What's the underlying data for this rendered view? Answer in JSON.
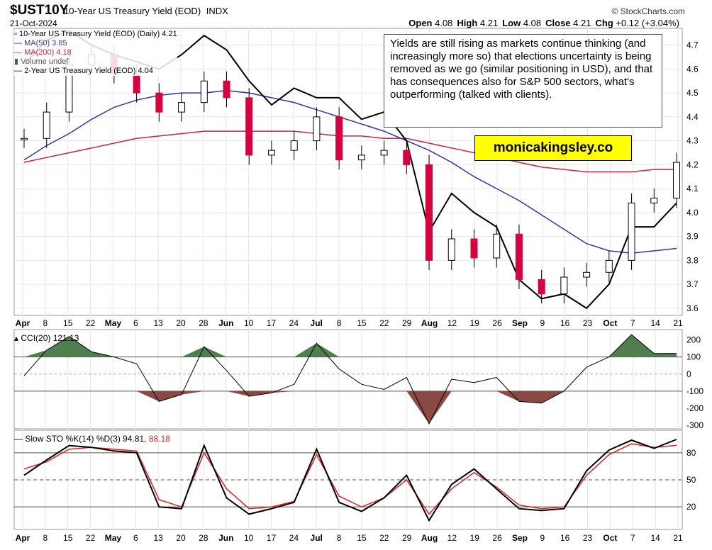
{
  "header": {
    "ticker": "$UST10Y",
    "name": "10-Year US Treasury Yield (EOD)",
    "exchange": "INDX",
    "date": "21-Oct-2024",
    "brand": "© StockCharts.com",
    "ohlc": [
      {
        "label": "Open",
        "value": "4.08"
      },
      {
        "label": "High",
        "value": "4.21"
      },
      {
        "label": "Low",
        "value": "4.08"
      },
      {
        "label": "Close",
        "value": "4.21"
      },
      {
        "label": "Chg",
        "value": "+0.12 (+3.04%)"
      }
    ]
  },
  "legend": {
    "price": "10-Year US Treasury Yield (EOD) (Daily) 4.21",
    "ma50": "MA(50) 3.85",
    "ma200": "MA(200) 4.18",
    "volume": "Volume undef",
    "two_year": "2-Year US Treasury Yield (EOD) 4.04"
  },
  "annotation": "Yields are still rising as markets continue thinking (and increasingly more so) that elections uncertainty is being removed as we go (similar positioning in USD), and that has consequences also for S&P 500 sectors, what's outperforming (talked with clients).",
  "watermark": "monicakingsley.co",
  "cci_legend": "CCI(20) 121.13",
  "sto_legend": {
    "label": "Slow STO %K(14) %D(3) 94.81,",
    "d_value": "88.18"
  },
  "colors": {
    "up": "#ffffff",
    "down": "#d8003f",
    "ma50": "#3333aa",
    "ma200": "#cc2244",
    "two_year": "#000000",
    "cci_pos": "#4f7f4f",
    "cci_neg": "#8a4a44",
    "sto_d": "#e02020"
  },
  "chart_data": [
    {
      "type": "candlestick",
      "title": "$UST10Y 10-Year US Treasury Yield (EOD)",
      "y_axis_ticks": [
        "3.6",
        "3.7",
        "3.8",
        "3.9",
        "4.0",
        "4.1",
        "4.2",
        "4.3",
        "4.4",
        "4.5",
        "4.6",
        "4.7"
      ],
      "ylim": [
        3.57,
        4.77
      ],
      "x_tick_labels": [
        "Apr",
        "8",
        "15",
        "22",
        "May",
        "6",
        "13",
        "20",
        "28",
        "Jun",
        "10",
        "17",
        "24",
        "Jul",
        "8",
        "15",
        "22",
        "29",
        "Aug",
        "12",
        "19",
        "26",
        "Sep",
        "9",
        "16",
        "23",
        "Oct",
        "7",
        "14",
        "21"
      ],
      "dates": [
        "2024-04-01",
        "2024-04-08",
        "2024-04-15",
        "2024-04-22",
        "2024-04-29",
        "2024-05-06",
        "2024-05-13",
        "2024-05-20",
        "2024-05-28",
        "2024-06-03",
        "2024-06-10",
        "2024-06-17",
        "2024-06-24",
        "2024-07-01",
        "2024-07-08",
        "2024-07-15",
        "2024-07-22",
        "2024-07-29",
        "2024-08-05",
        "2024-08-12",
        "2024-08-19",
        "2024-08-26",
        "2024-09-03",
        "2024-09-09",
        "2024-09-16",
        "2024-09-23",
        "2024-09-30",
        "2024-10-07",
        "2024-10-14",
        "2024-10-21"
      ],
      "series": [
        {
          "name": "10-Year US Treasury Yield (EOD)",
          "values": [
            4.31,
            4.42,
            4.62,
            4.66,
            4.58,
            4.5,
            4.42,
            4.46,
            4.55,
            4.48,
            4.24,
            4.26,
            4.3,
            4.4,
            4.22,
            4.24,
            4.26,
            4.2,
            3.8,
            3.89,
            3.81,
            3.91,
            3.72,
            3.66,
            3.73,
            3.75,
            3.8,
            4.04,
            4.06,
            4.21
          ]
        },
        {
          "name": "MA(50)",
          "values": [
            4.22,
            4.28,
            4.33,
            4.39,
            4.44,
            4.47,
            4.49,
            4.5,
            4.5,
            4.51,
            4.5,
            4.48,
            4.46,
            4.43,
            4.4,
            4.37,
            4.34,
            4.3,
            4.26,
            4.21,
            4.15,
            4.1,
            4.05,
            3.99,
            3.93,
            3.87,
            3.84,
            3.83,
            3.84,
            3.85
          ]
        },
        {
          "name": "MA(200)",
          "values": [
            4.21,
            4.23,
            4.25,
            4.27,
            4.29,
            4.31,
            4.32,
            4.33,
            4.34,
            4.34,
            4.34,
            4.34,
            4.34,
            4.33,
            4.32,
            4.32,
            4.31,
            4.31,
            4.29,
            4.27,
            4.25,
            4.23,
            4.21,
            4.19,
            4.18,
            4.17,
            4.17,
            4.17,
            4.18,
            4.18
          ]
        },
        {
          "name": "2-Year US Treasury Yield (EOD)",
          "values": [
            4.62,
            4.72,
            4.76,
            4.7,
            4.66,
            4.63,
            4.6,
            4.66,
            4.74,
            4.68,
            4.55,
            4.45,
            4.52,
            4.48,
            4.48,
            4.39,
            4.42,
            4.3,
            3.92,
            4.08,
            4.0,
            3.94,
            3.72,
            3.64,
            3.66,
            3.6,
            3.7,
            3.94,
            3.94,
            4.04
          ]
        }
      ]
    },
    {
      "type": "line",
      "title": "CCI(20) 121.13",
      "y_axis_ticks": [
        "-300",
        "-200",
        "-100",
        "0",
        "100",
        "200"
      ],
      "ylim": [
        -320,
        260
      ],
      "reference_lines": [
        100,
        0,
        -100
      ],
      "series": [
        {
          "name": "CCI(20)",
          "values": [
            -10,
            140,
            220,
            130,
            100,
            60,
            -160,
            -120,
            160,
            20,
            -130,
            -110,
            -60,
            180,
            30,
            -60,
            -90,
            -20,
            -290,
            -30,
            -50,
            -20,
            -160,
            -170,
            -100,
            40,
            100,
            230,
            120,
            121
          ]
        }
      ]
    },
    {
      "type": "line",
      "title": "Slow STO %K(14) %D(3) 94.81, 88.18",
      "y_axis_ticks": [
        "20",
        "50",
        "80"
      ],
      "ylim": [
        -5,
        105
      ],
      "reference_lines": [
        80,
        50,
        20
      ],
      "series": [
        {
          "name": "%K(14)",
          "values": [
            55,
            72,
            88,
            86,
            82,
            80,
            20,
            18,
            88,
            30,
            12,
            18,
            25,
            84,
            25,
            15,
            30,
            55,
            5,
            45,
            62,
            40,
            18,
            16,
            18,
            60,
            83,
            94,
            85,
            94.81
          ]
        },
        {
          "name": "%D(3)",
          "values": [
            62,
            70,
            84,
            86,
            84,
            82,
            28,
            20,
            80,
            40,
            18,
            20,
            26,
            78,
            32,
            20,
            30,
            50,
            12,
            40,
            58,
            42,
            22,
            18,
            20,
            55,
            78,
            90,
            86,
            88.18
          ]
        }
      ]
    }
  ]
}
